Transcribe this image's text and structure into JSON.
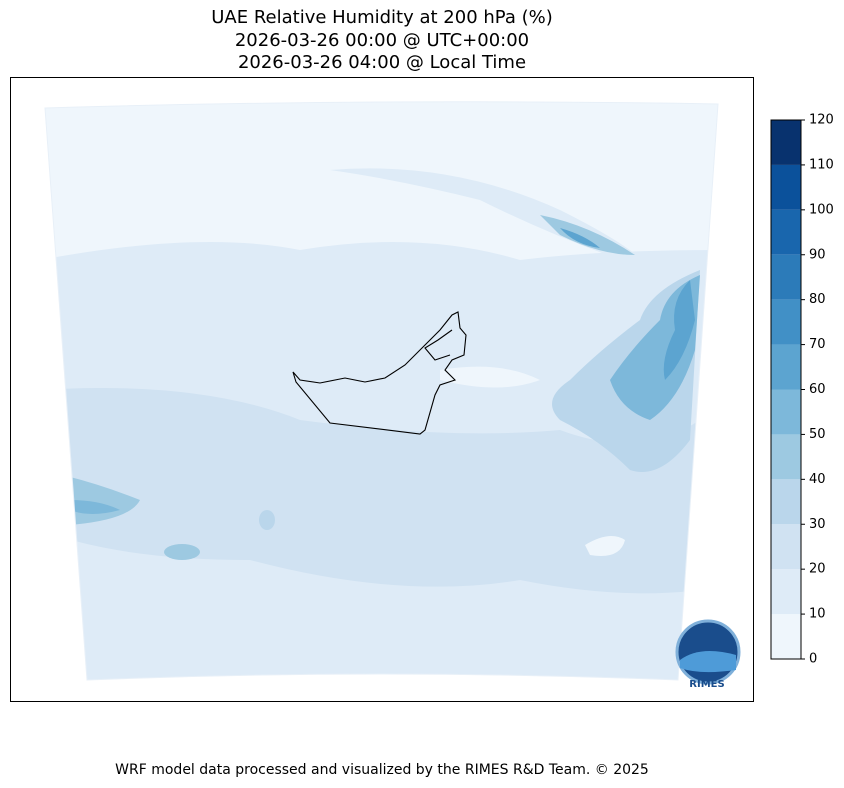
{
  "header": {
    "title_lines": [
      "UAE Relative Humidity at 200 hPa (%)",
      "2026-03-26 00:00 @ UTC+00:00",
      "2026-03-26 04:00 @ Local Time"
    ]
  },
  "colorbar": {
    "levels": [
      0,
      10,
      20,
      30,
      40,
      50,
      60,
      70,
      80,
      90,
      100,
      110,
      120
    ],
    "colors": [
      "#eff6fc",
      "#deebf7",
      "#d0e2f2",
      "#bad6eb",
      "#9dc9e1",
      "#7db8da",
      "#5ca4d0",
      "#4190c6",
      "#2c7bb9",
      "#1966ad",
      "#0b519b",
      "#08326e"
    ],
    "ticks": [
      0,
      10,
      20,
      30,
      40,
      50,
      60,
      70,
      80,
      90,
      100,
      110,
      120
    ]
  },
  "logo": {
    "text": "RIMES"
  },
  "footer": {
    "text": "WRF model data processed and visualized by the RIMES R&D Team. © 2025"
  }
}
